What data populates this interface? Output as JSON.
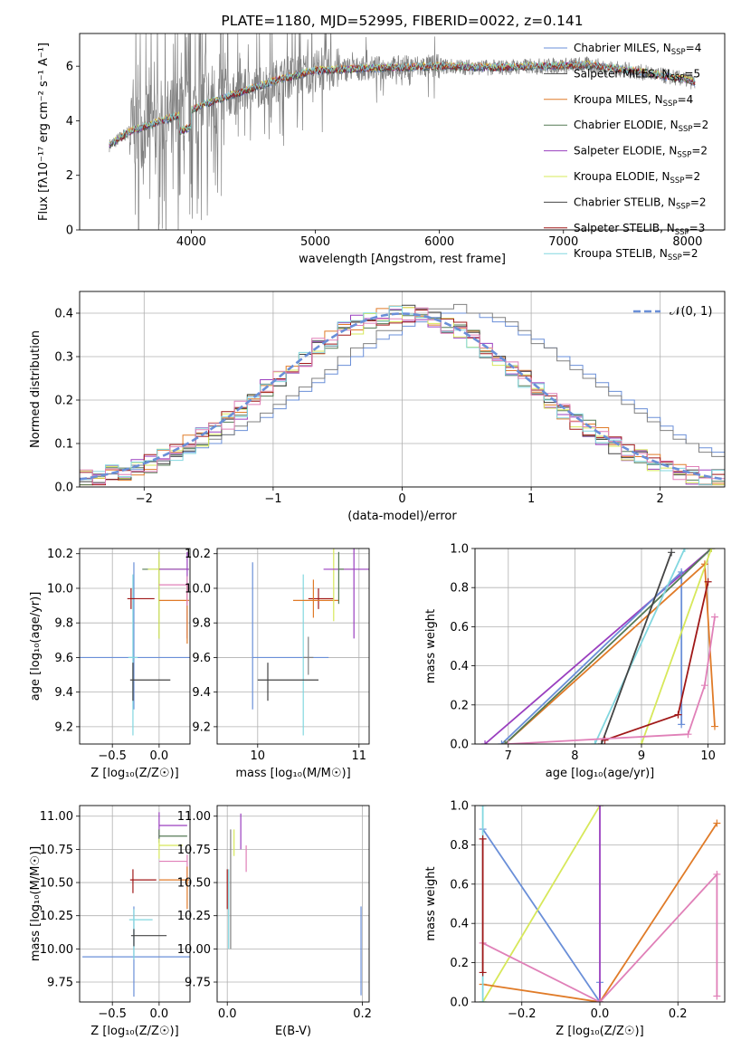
{
  "colors": {
    "gray": "#808080",
    "blue": "#6a8fd8",
    "orange": "#e07b28",
    "dark": "#444444",
    "magenta": "#9a3fbf",
    "yellow": "#d7e85a",
    "red": "#a01818",
    "cyan": "#82d7df",
    "pink": "#e080b8",
    "green": "#557a55",
    "grid": "#b0b0b0"
  },
  "chart_data": [
    {
      "type": "line",
      "title": "PLATE=1180, MJD=52995, FIBERID=0022, z=0.141",
      "xlabel": "wavelength [Angstrom, rest frame]",
      "ylabel": "Flux [fλ10⁻¹⁷ erg cm⁻² s⁻¹ A⁻¹]",
      "xlim": [
        3100,
        8300
      ],
      "ylim": [
        0,
        7.2
      ],
      "xticks": [
        4000,
        5000,
        6000,
        7000,
        8000
      ],
      "yticks": [
        0,
        2,
        4,
        6
      ],
      "grid": false,
      "legend": "right",
      "data_series": {
        "x": [
          3340,
          3500,
          3700,
          3900,
          4100,
          4300,
          4500,
          4700,
          5000,
          5300,
          5600,
          6000,
          6400,
          6800,
          7200,
          7600,
          8000,
          8060
        ],
        "y": [
          3.1,
          3.6,
          3.9,
          4.2,
          4.6,
          4.9,
          5.2,
          5.5,
          5.85,
          5.9,
          5.95,
          6.0,
          5.95,
          6.0,
          6.05,
          5.8,
          5.5,
          5.4
        ]
      },
      "legend_entries": [
        {
          "label": "Chabrier MILES, N",
          "sub": "SSP",
          "suffix": "=4",
          "color": "blue"
        },
        {
          "label": "Salpeter MILES, N",
          "sub": "SSP",
          "suffix": "=5",
          "color": "dark"
        },
        {
          "label": "Kroupa MILES, N",
          "sub": "SSP",
          "suffix": "=4",
          "color": "orange"
        },
        {
          "label": "Chabrier ELODIE, N",
          "sub": "SSP",
          "suffix": "=2",
          "color": "green"
        },
        {
          "label": "Salpeter ELODIE, N",
          "sub": "SSP",
          "suffix": "=2",
          "color": "magenta"
        },
        {
          "label": "Kroupa ELODIE, N",
          "sub": "SSP",
          "suffix": "=2",
          "color": "yellow"
        },
        {
          "label": "Chabrier STELIB, N",
          "sub": "SSP",
          "suffix": "=2",
          "color": "dark"
        },
        {
          "label": "Salpeter STELIB, N",
          "sub": "SSP",
          "suffix": "=3",
          "color": "red"
        },
        {
          "label": "Kroupa STELIB, N",
          "sub": "SSP",
          "suffix": "=2",
          "color": "cyan"
        }
      ]
    },
    {
      "type": "bar",
      "xlabel": "(data-model)/error",
      "ylabel": "Normed distribution",
      "xlim": [
        -2.5,
        2.5
      ],
      "ylim": [
        0,
        0.45
      ],
      "xticks": [
        -2,
        -1,
        0,
        1,
        2
      ],
      "yticks": [
        0.0,
        0.1,
        0.2,
        0.3,
        0.4
      ],
      "grid": true,
      "legend": "top-right",
      "legend_label": "𝒩(0, 1)",
      "bin_edges_start": -2.5,
      "bin_width": 0.1,
      "histograms": [
        {
          "color": "blue",
          "values": [
            0.02,
            0.02,
            0.03,
            0.04,
            0.04,
            0.05,
            0.06,
            0.07,
            0.08,
            0.09,
            0.1,
            0.12,
            0.13,
            0.15,
            0.16,
            0.18,
            0.2,
            0.22,
            0.24,
            0.26,
            0.28,
            0.3,
            0.32,
            0.34,
            0.35,
            0.37,
            0.38,
            0.39,
            0.4,
            0.4,
            0.4,
            0.39,
            0.38,
            0.37,
            0.35,
            0.34,
            0.32,
            0.3,
            0.28,
            0.26,
            0.24,
            0.22,
            0.2,
            0.18,
            0.16,
            0.14,
            0.12,
            0.1,
            0.09,
            0.08
          ]
        },
        {
          "color": "gray",
          "values": [
            0.02,
            0.03,
            0.03,
            0.04,
            0.05,
            0.05,
            0.06,
            0.07,
            0.09,
            0.1,
            0.11,
            0.12,
            0.14,
            0.15,
            0.17,
            0.19,
            0.21,
            0.23,
            0.25,
            0.27,
            0.3,
            0.32,
            0.33,
            0.36,
            0.36,
            0.38,
            0.39,
            0.41,
            0.41,
            0.42,
            0.4,
            0.4,
            0.39,
            0.38,
            0.36,
            0.33,
            0.32,
            0.29,
            0.27,
            0.25,
            0.23,
            0.21,
            0.19,
            0.17,
            0.15,
            0.13,
            0.11,
            0.1,
            0.08,
            0.07
          ]
        }
      ]
    },
    {
      "type": "scatter",
      "xlabel": "Z [log₁₀(Z/Z☉)]",
      "ylabel": "age  [log₁₀(age/yr)]",
      "xlim": [
        -0.85,
        0.33
      ],
      "ylim": [
        9.1,
        10.23
      ],
      "xticks": [
        -0.5,
        0.0
      ],
      "xtick_labels": [
        "−0.5",
        "0.0"
      ],
      "yticks": [
        9.2,
        9.4,
        9.6,
        9.8,
        10.0,
        10.2
      ],
      "grid": true
    },
    {
      "type": "scatter",
      "xlabel": "mass [log₁₀(M/M☉)]",
      "ylabel": "",
      "xlim": [
        9.6,
        11.1
      ],
      "ylim": [
        9.1,
        10.23
      ],
      "xticks": [
        10,
        11
      ],
      "xtick_labels": [
        "10",
        "11"
      ],
      "yticks": [
        9.2,
        9.4,
        9.6,
        9.8,
        10.0,
        10.2
      ],
      "grid": true
    },
    {
      "type": "line",
      "xlabel": "age  [log₁₀(age/yr)]",
      "ylabel": "mass weight",
      "xlim": [
        6.5,
        10.25
      ],
      "ylim": [
        0,
        1.0
      ],
      "xticks": [
        7,
        8,
        9,
        10
      ],
      "xtick_labels": [
        "7",
        "8",
        "9",
        "10"
      ],
      "yticks": [
        0.0,
        0.2,
        0.4,
        0.6,
        0.8,
        1.0
      ],
      "grid": true,
      "series": [
        {
          "color": "magenta",
          "x": [
            6.65,
            10.05
          ],
          "y": [
            0.0,
            1.0
          ]
        },
        {
          "color": "blue",
          "x": [
            6.9,
            9.6,
            9.6
          ],
          "y": [
            0.0,
            0.88,
            0.1
          ]
        },
        {
          "color": "orange",
          "x": [
            6.95,
            9.95,
            10.1
          ],
          "y": [
            0.0,
            0.92,
            0.09
          ]
        },
        {
          "color": "green",
          "x": [
            6.95,
            10.05
          ],
          "y": [
            0.0,
            1.0
          ]
        },
        {
          "color": "cyan",
          "x": [
            8.3,
            9.65
          ],
          "y": [
            0.0,
            1.0
          ]
        },
        {
          "color": "dark",
          "x": [
            8.4,
            9.45
          ],
          "y": [
            0.0,
            0.98
          ]
        },
        {
          "color": "yellow",
          "x": [
            9.0,
            10.05
          ],
          "y": [
            0.0,
            1.0
          ]
        },
        {
          "color": "red",
          "x": [
            8.45,
            9.55,
            10.0
          ],
          "y": [
            0.02,
            0.15,
            0.83
          ]
        },
        {
          "color": "pink",
          "x": [
            7.0,
            9.7,
            9.95,
            10.1
          ],
          "y": [
            0.0,
            0.05,
            0.3,
            0.65
          ]
        }
      ]
    },
    {
      "type": "scatter",
      "xlabel": "Z [log₁₀(Z/Z☉)]",
      "ylabel": "mass [log₁₀(M/M☉)]",
      "xlim": [
        -0.85,
        0.33
      ],
      "ylim": [
        9.6,
        11.08
      ],
      "xticks": [
        -0.5,
        0.0
      ],
      "xtick_labels": [
        "−0.5",
        "0.0"
      ],
      "yticks": [
        9.75,
        10.0,
        10.25,
        10.5,
        10.75,
        11.0
      ],
      "ytick_labels": [
        "9.75",
        "10.00",
        "10.25",
        "10.50",
        "10.75",
        "11.00"
      ],
      "grid": true
    },
    {
      "type": "scatter",
      "xlabel": "E(B-V)",
      "ylabel": "",
      "xlim": [
        -0.015,
        0.21
      ],
      "ylim": [
        9.6,
        11.08
      ],
      "xticks": [
        0.0,
        0.2
      ],
      "xtick_labels": [
        "0.0",
        "0.2"
      ],
      "yticks": [
        9.75,
        10.0,
        10.25,
        10.5,
        10.75,
        11.0
      ],
      "ytick_labels": [
        "9.75",
        "10.00",
        "10.25",
        "10.50",
        "10.75",
        "11.00"
      ],
      "grid": true
    },
    {
      "type": "line",
      "xlabel": "Z [log₁₀(Z/Z☉)]",
      "ylabel": "mass weight",
      "xlim": [
        -0.32,
        0.32
      ],
      "ylim": [
        0,
        1.0
      ],
      "xticks": [
        -0.2,
        0.0,
        0.2
      ],
      "xtick_labels": [
        "−0.2",
        "0.0",
        "0.2"
      ],
      "yticks": [
        0.0,
        0.2,
        0.4,
        0.6,
        0.8,
        1.0
      ],
      "grid": true,
      "series": [
        {
          "color": "blue",
          "x": [
            -0.3,
            0.0,
            0.0
          ],
          "y": [
            0.88,
            0.0,
            0.1
          ]
        },
        {
          "color": "yellow",
          "x": [
            -0.3,
            0.0
          ],
          "y": [
            0.0,
            1.0
          ]
        },
        {
          "color": "magenta",
          "x": [
            0.0,
            0.0
          ],
          "y": [
            0.0,
            1.0
          ]
        },
        {
          "color": "orange",
          "x": [
            -0.3,
            0.0,
            0.3
          ],
          "y": [
            0.09,
            0.0,
            0.91
          ]
        },
        {
          "color": "pink",
          "x": [
            -0.3,
            0.0,
            0.3,
            0.3
          ],
          "y": [
            0.3,
            0.0,
            0.65,
            0.03
          ]
        },
        {
          "color": "cyan",
          "x": [
            -0.3,
            -0.3
          ],
          "y": [
            0.0,
            1.0
          ]
        },
        {
          "color": "red",
          "x": [
            -0.3,
            -0.3
          ],
          "y": [
            0.15,
            0.83
          ]
        }
      ]
    }
  ]
}
